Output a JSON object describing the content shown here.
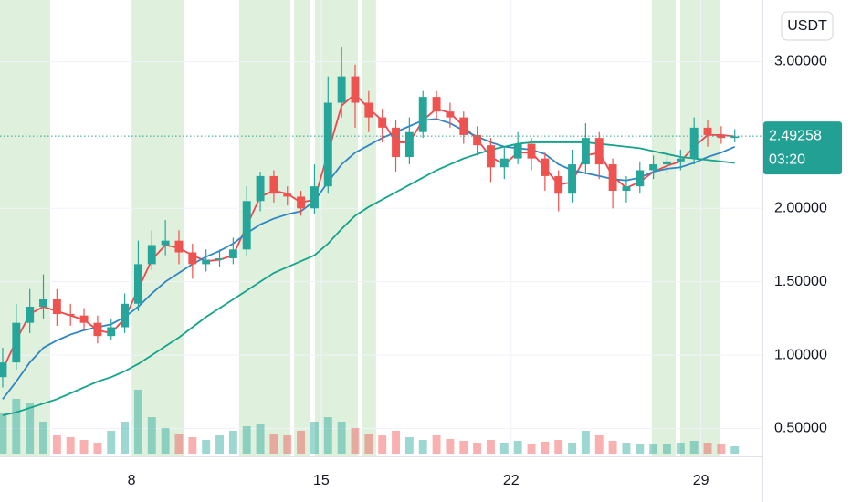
{
  "chart_data": {
    "type": "candlestick",
    "currency": "USDT",
    "x": [
      3.25,
      3.75,
      4.25,
      4.75,
      5.25,
      5.75,
      6.25,
      6.75,
      7.25,
      7.75,
      8.25,
      8.75,
      9.25,
      9.75,
      10.25,
      10.75,
      11.25,
      11.75,
      12.25,
      12.75,
      13.25,
      13.75,
      14.25,
      14.75,
      15.25,
      15.75,
      16.25,
      16.75,
      17.25,
      17.75,
      18.25,
      18.75,
      19.25,
      19.75,
      20.25,
      20.75,
      21.25,
      21.75,
      22.25,
      22.75,
      23.25,
      23.75,
      24.25,
      24.75,
      25.25,
      25.75,
      26.25,
      26.75,
      27.25,
      27.75,
      28.25,
      28.75,
      29.25,
      29.75,
      30.25
    ],
    "open": [
      0.85,
      0.95,
      1.22,
      1.33,
      1.38,
      1.28,
      1.27,
      1.22,
      1.13,
      1.19,
      1.35,
      1.62,
      1.75,
      1.78,
      1.7,
      1.62,
      1.65,
      1.66,
      1.72,
      2.05,
      2.22,
      2.1,
      2.08,
      2.0,
      2.15,
      2.72,
      2.9,
      2.72,
      2.62,
      2.55,
      2.35,
      2.52,
      2.76,
      2.66,
      2.62,
      2.5,
      2.43,
      2.28,
      2.34,
      2.44,
      2.34,
      2.22,
      2.1,
      2.3,
      2.48,
      2.3,
      2.12,
      2.15,
      2.26,
      2.3,
      2.32,
      2.34,
      2.55,
      2.5,
      2.48
    ],
    "high": [
      1.05,
      1.35,
      1.45,
      1.55,
      1.45,
      1.35,
      1.32,
      1.27,
      1.25,
      1.42,
      1.78,
      1.85,
      1.92,
      1.85,
      1.76,
      1.72,
      1.72,
      1.8,
      2.15,
      2.25,
      2.26,
      2.15,
      2.12,
      2.3,
      2.9,
      3.1,
      2.98,
      2.8,
      2.68,
      2.6,
      2.62,
      2.8,
      2.8,
      2.72,
      2.66,
      2.56,
      2.48,
      2.42,
      2.52,
      2.48,
      2.38,
      2.26,
      2.4,
      2.58,
      2.52,
      2.34,
      2.22,
      2.32,
      2.36,
      2.38,
      2.4,
      2.62,
      2.6,
      2.56,
      2.54
    ],
    "low": [
      0.78,
      0.9,
      1.15,
      1.25,
      1.2,
      1.2,
      1.17,
      1.08,
      1.1,
      1.15,
      1.3,
      1.58,
      1.68,
      1.62,
      1.52,
      1.57,
      1.6,
      1.62,
      1.68,
      1.98,
      2.04,
      2.02,
      1.95,
      1.96,
      2.1,
      2.62,
      2.55,
      2.52,
      2.45,
      2.25,
      2.3,
      2.48,
      2.6,
      2.55,
      2.44,
      2.36,
      2.18,
      2.2,
      2.3,
      2.26,
      2.12,
      1.98,
      2.04,
      2.24,
      2.2,
      2.0,
      2.04,
      2.1,
      2.2,
      2.24,
      2.26,
      2.3,
      2.42,
      2.44,
      2.45
    ],
    "close": [
      0.95,
      1.22,
      1.33,
      1.38,
      1.28,
      1.27,
      1.22,
      1.13,
      1.19,
      1.35,
      1.62,
      1.75,
      1.78,
      1.7,
      1.62,
      1.65,
      1.66,
      1.72,
      2.05,
      2.22,
      2.1,
      2.08,
      2.0,
      2.15,
      2.72,
      2.9,
      2.72,
      2.62,
      2.55,
      2.35,
      2.52,
      2.76,
      2.66,
      2.62,
      2.5,
      2.43,
      2.28,
      2.34,
      2.44,
      2.34,
      2.22,
      2.1,
      2.3,
      2.48,
      2.3,
      2.12,
      2.15,
      2.26,
      2.3,
      2.32,
      2.34,
      2.55,
      2.5,
      2.48,
      2.49
    ],
    "volume": [
      45,
      60,
      55,
      35,
      20,
      18,
      15,
      12,
      25,
      35,
      70,
      40,
      28,
      22,
      18,
      15,
      20,
      25,
      30,
      32,
      22,
      20,
      25,
      35,
      40,
      35,
      28,
      22,
      20,
      25,
      18,
      15,
      20,
      16,
      14,
      12,
      15,
      12,
      14,
      11,
      13,
      15,
      12,
      25,
      20,
      14,
      12,
      10,
      11,
      10,
      12,
      14,
      12,
      10,
      8
    ],
    "up_color": "#26a69a",
    "down_color": "#ef5350",
    "moving_averages": [
      {
        "color": "#f0474f",
        "values": [
          0.9,
          1.1,
          1.28,
          1.33,
          1.3,
          1.27,
          1.24,
          1.17,
          1.15,
          1.25,
          1.45,
          1.65,
          1.75,
          1.73,
          1.68,
          1.64,
          1.65,
          1.68,
          1.88,
          2.08,
          2.12,
          2.1,
          2.04,
          2.06,
          2.38,
          2.7,
          2.78,
          2.68,
          2.6,
          2.45,
          2.45,
          2.6,
          2.68,
          2.65,
          2.56,
          2.47,
          2.35,
          2.3,
          2.38,
          2.38,
          2.28,
          2.16,
          2.18,
          2.36,
          2.38,
          2.22,
          2.14,
          2.18,
          2.25,
          2.29,
          2.32,
          2.42,
          2.5,
          2.5,
          2.49
        ]
      },
      {
        "color": "#2f86c4",
        "values": [
          0.7,
          0.82,
          0.95,
          1.05,
          1.1,
          1.14,
          1.17,
          1.19,
          1.21,
          1.26,
          1.33,
          1.42,
          1.5,
          1.56,
          1.62,
          1.67,
          1.71,
          1.76,
          1.83,
          1.89,
          1.93,
          1.96,
          1.98,
          2.05,
          2.18,
          2.3,
          2.38,
          2.43,
          2.48,
          2.52,
          2.56,
          2.6,
          2.61,
          2.58,
          2.53,
          2.49,
          2.45,
          2.42,
          2.41,
          2.4,
          2.37,
          2.3,
          2.26,
          2.24,
          2.22,
          2.2,
          2.19,
          2.21,
          2.25,
          2.27,
          2.28,
          2.31,
          2.35,
          2.38,
          2.42
        ]
      },
      {
        "color": "#14a38b",
        "values": [
          0.59,
          0.61,
          0.64,
          0.67,
          0.7,
          0.74,
          0.78,
          0.82,
          0.85,
          0.89,
          0.94,
          1.0,
          1.06,
          1.12,
          1.19,
          1.26,
          1.32,
          1.38,
          1.44,
          1.5,
          1.56,
          1.6,
          1.64,
          1.68,
          1.76,
          1.86,
          1.95,
          2.01,
          2.06,
          2.11,
          2.16,
          2.21,
          2.26,
          2.3,
          2.34,
          2.37,
          2.4,
          2.42,
          2.44,
          2.45,
          2.45,
          2.45,
          2.45,
          2.45,
          2.44,
          2.43,
          2.42,
          2.41,
          2.39,
          2.37,
          2.35,
          2.34,
          2.33,
          2.32,
          2.31
        ]
      }
    ],
    "highlights": [
      [
        3.15,
        5.0
      ],
      [
        7.97,
        9.95
      ],
      [
        11.97,
        13.86
      ],
      [
        14.0,
        14.6
      ],
      [
        14.77,
        16.35
      ],
      [
        16.52,
        17.02
      ],
      [
        27.19,
        28.07
      ],
      [
        28.24,
        29.72
      ]
    ],
    "highlight_color": "#dff0dc",
    "last_price": 2.49258,
    "last_price_color": "#22a094",
    "countdown": "03:20",
    "xlim": [
      3.15,
      31.27
    ],
    "xticks": [
      8,
      15,
      22,
      29
    ],
    "ylim": [
      0.31,
      3.42
    ],
    "yticks": [
      {
        "value": 0.5,
        "label": "0.50000"
      },
      {
        "value": 1,
        "label": "1.00000"
      },
      {
        "value": 1.5,
        "label": "1.50000"
      },
      {
        "value": 2,
        "label": "2.00000"
      },
      {
        "value": 3,
        "label": "3.00000"
      }
    ],
    "grid": true
  }
}
